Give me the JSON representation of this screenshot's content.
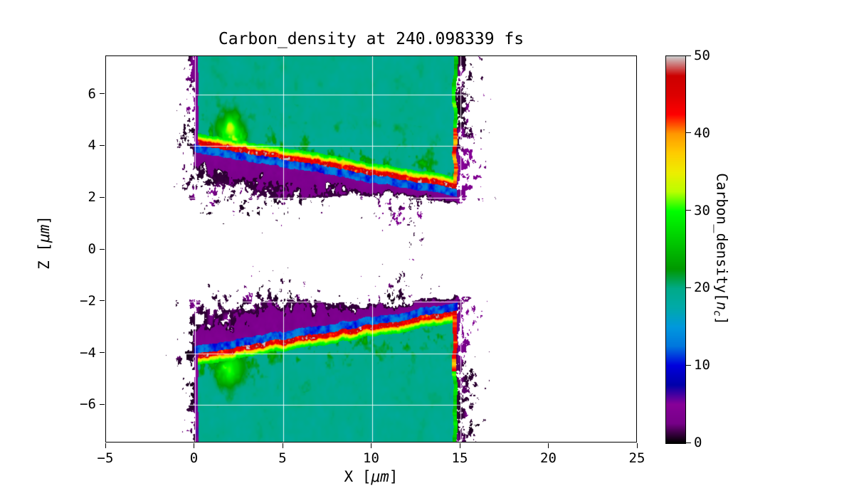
{
  "chart_data": {
    "type": "heatmap",
    "title": "Carbon_density at 240.098339 fs",
    "time_fs": 240.098339,
    "xlabel": {
      "prefix": "X [",
      "unit": "μm",
      "suffix": "]"
    },
    "ylabel": {
      "prefix": "Z [",
      "unit": "μm",
      "suffix": "]"
    },
    "xlim": [
      -5,
      25
    ],
    "ylim": [
      -7.47,
      7.47
    ],
    "xticks": {
      "values": [
        -5,
        0,
        5,
        10,
        15,
        20,
        25
      ],
      "labels": [
        "−5",
        "0",
        "5",
        "10",
        "15",
        "20",
        "25"
      ]
    },
    "yticks": {
      "values": [
        -6,
        -4,
        -2,
        0,
        2,
        4,
        6
      ],
      "labels": [
        "−6",
        "−4",
        "−2",
        "0",
        "2",
        "4",
        "6"
      ]
    },
    "grid": {
      "show": true,
      "color": "#ffffff"
    },
    "colorbar": {
      "label": {
        "prefix": "Carbon_density[",
        "var": "n",
        "subscript": "c",
        "suffix": "]"
      },
      "min": 0,
      "max": 50,
      "ticks": {
        "values": [
          0,
          10,
          20,
          30,
          40,
          50
        ],
        "labels": [
          "0",
          "10",
          "20",
          "30",
          "40",
          "50"
        ]
      },
      "colormap": "nipy_spectral",
      "colormap_stops": [
        [
          0.0,
          0.0,
          0.0,
          0.0
        ],
        [
          0.05,
          0.4667,
          0.0,
          0.5333
        ],
        [
          0.1,
          0.5333,
          0.0,
          0.6
        ],
        [
          0.15,
          0.0,
          0.0,
          0.6667
        ],
        [
          0.2,
          0.0,
          0.0,
          0.8667
        ],
        [
          0.25,
          0.0,
          0.4667,
          0.8667
        ],
        [
          0.3,
          0.0,
          0.6,
          0.8667
        ],
        [
          0.35,
          0.0,
          0.6667,
          0.6667
        ],
        [
          0.4,
          0.0,
          0.6667,
          0.5333
        ],
        [
          0.45,
          0.0,
          0.6,
          0.0
        ],
        [
          0.5,
          0.0,
          0.7333,
          0.0
        ],
        [
          0.55,
          0.0,
          0.8667,
          0.0
        ],
        [
          0.6,
          0.0,
          1.0,
          0.0
        ],
        [
          0.65,
          0.7333,
          1.0,
          0.0
        ],
        [
          0.7,
          0.9333,
          0.9333,
          0.0
        ],
        [
          0.75,
          1.0,
          0.8,
          0.0
        ],
        [
          0.8,
          1.0,
          0.6,
          0.0
        ],
        [
          0.85,
          1.0,
          0.0,
          0.0
        ],
        [
          0.9,
          0.8667,
          0.0,
          0.0
        ],
        [
          0.95,
          0.8,
          0.0,
          0.0
        ],
        [
          1.0,
          0.8,
          0.8,
          0.8
        ]
      ]
    },
    "field_model": {
      "description": "Two mirrored carbon slabs (x 0-14.8 um) with hot ablated inner surfaces sloping from |z|=4.05 at x=0 to |z|=2.35 at x=14.8; teal bulk ~20 nc, yellow/red surface ridge 28-50 nc, blue sheath 8-15 nc, purple band 2-6 nc, low-density black speckle debris in channel and beyond slab edges",
      "slab_x_min": 0.0,
      "slab_x_max": 14.8,
      "surface_abs_z_at_x0": 4.05,
      "surface_abs_z_at_xmax": 2.35,
      "bulk_density_nc": 19.5,
      "ridge_density_nc": [
        28,
        50
      ],
      "blue_sheath_density_nc": [
        8,
        15
      ],
      "purple_band_density_nc": [
        2,
        6
      ],
      "speckle_density_nc": [
        0.3,
        5
      ],
      "purple_band_width_um": 0.95,
      "right_debris_extent_um": 3.6,
      "left_debris_extent_um": 2.2,
      "hot_blob_x_um": 2.05
    }
  }
}
